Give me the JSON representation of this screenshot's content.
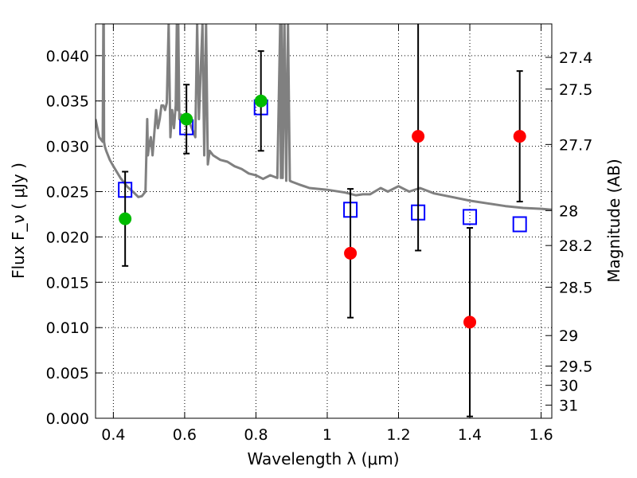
{
  "chart_data": {
    "type": "scatter",
    "title": "",
    "xlabel": "Wavelength  λ (μm)",
    "ylabel": "Flux  F_ν  ( μJy )",
    "y2label": "Magnitude (AB)",
    "xlim": [
      0.35,
      1.63
    ],
    "ylim": [
      0.0,
      0.0435
    ],
    "grid": true,
    "x_ticks": [
      0.4,
      0.6,
      0.8,
      1.0,
      1.2,
      1.4,
      1.6
    ],
    "x_tick_labels": [
      "0.4",
      "0.6",
      "0.8",
      "1",
      "1.2",
      "1.4",
      "1.6"
    ],
    "y_ticks": [
      0.0,
      0.005,
      0.01,
      0.015,
      0.02,
      0.025,
      0.03,
      0.035,
      0.04
    ],
    "y_tick_labels": [
      "0.000",
      "0.005",
      "0.010",
      "0.015",
      "0.020",
      "0.025",
      "0.030",
      "0.035",
      "0.040"
    ],
    "mag_ticks": [
      27.4,
      27.5,
      27.7,
      28,
      28.2,
      28.5,
      29,
      29.5,
      30,
      31
    ],
    "mag_tick_labels": [
      "27.4",
      "27.5",
      "27.7",
      "28",
      "28.2",
      "28.5",
      "29",
      "29.5",
      "30",
      "31"
    ],
    "series": [
      {
        "kind": "model_spectrum",
        "color": "#808080",
        "x": [
          0.35,
          0.36,
          0.37,
          0.372,
          0.373,
          0.374,
          0.376,
          0.38,
          0.39,
          0.4,
          0.42,
          0.44,
          0.46,
          0.47,
          0.48,
          0.49,
          0.495,
          0.497,
          0.5,
          0.505,
          0.51,
          0.52,
          0.525,
          0.53,
          0.535,
          0.54,
          0.545,
          0.55,
          0.555,
          0.56,
          0.565,
          0.57,
          0.575,
          0.578,
          0.58,
          0.582,
          0.585,
          0.59,
          0.6,
          0.61,
          0.62,
          0.63,
          0.635,
          0.64,
          0.65,
          0.655,
          0.66,
          0.665,
          0.67,
          0.68,
          0.7,
          0.72,
          0.74,
          0.76,
          0.78,
          0.8,
          0.82,
          0.84,
          0.86,
          0.868,
          0.87,
          0.872,
          0.875,
          0.88,
          0.885,
          0.89,
          0.895,
          0.9,
          0.92,
          0.95,
          1.0,
          1.05,
          1.08,
          1.1,
          1.12,
          1.15,
          1.17,
          1.2,
          1.23,
          1.26,
          1.3,
          1.35,
          1.4,
          1.45,
          1.5,
          1.55,
          1.6,
          1.63
        ],
        "y": [
          0.033,
          0.031,
          0.0305,
          0.0435,
          0.0435,
          0.0305,
          0.03,
          0.0295,
          0.0285,
          0.0278,
          0.0265,
          0.0255,
          0.0248,
          0.0244,
          0.0245,
          0.025,
          0.033,
          0.029,
          0.03,
          0.031,
          0.029,
          0.034,
          0.032,
          0.033,
          0.0345,
          0.0345,
          0.034,
          0.0348,
          0.0435,
          0.031,
          0.034,
          0.032,
          0.0345,
          0.0435,
          0.034,
          0.0435,
          0.033,
          0.0335,
          0.033,
          0.033,
          0.032,
          0.031,
          0.0435,
          0.033,
          0.0435,
          0.029,
          0.0435,
          0.028,
          0.0295,
          0.029,
          0.0285,
          0.0283,
          0.0278,
          0.0275,
          0.027,
          0.0268,
          0.0264,
          0.0268,
          0.0265,
          0.0435,
          0.0265,
          0.0435,
          0.0265,
          0.0435,
          0.0262,
          0.0435,
          0.0262,
          0.0261,
          0.0258,
          0.0254,
          0.0252,
          0.0249,
          0.0246,
          0.0247,
          0.0247,
          0.0254,
          0.025,
          0.0256,
          0.025,
          0.0254,
          0.0248,
          0.0244,
          0.024,
          0.0237,
          0.0234,
          0.0232,
          0.0231,
          0.023
        ]
      },
      {
        "kind": "model_flux_squares",
        "color": "#0000ff",
        "x": [
          0.433,
          0.605,
          0.814,
          1.065,
          1.255,
          1.4,
          1.54
        ],
        "y": [
          0.0252,
          0.0321,
          0.0343,
          0.023,
          0.0227,
          0.0222,
          0.0214
        ]
      },
      {
        "kind": "observed_detections",
        "color": "#00bb00",
        "x": [
          0.433,
          0.605,
          0.814
        ],
        "y": [
          0.022,
          0.033,
          0.035
        ],
        "yerr": [
          0.0052,
          0.0038,
          0.0055
        ]
      },
      {
        "kind": "observed_low_significance",
        "color": "#ff0000",
        "x": [
          1.065,
          1.255,
          1.4,
          1.54
        ],
        "y": [
          0.0182,
          0.0311,
          0.0106,
          0.0311
        ],
        "yerr": [
          0.0071,
          0.0126,
          0.0104,
          0.0072
        ]
      }
    ]
  }
}
